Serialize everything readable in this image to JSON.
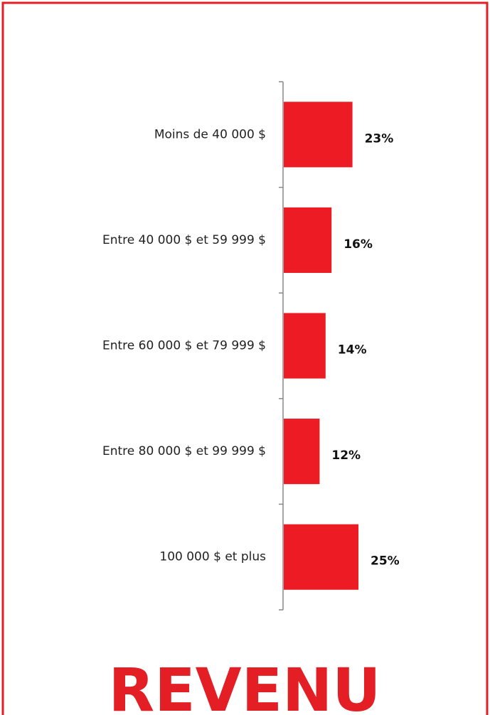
{
  "chart_data": {
    "type": "barh",
    "title": "REVENU",
    "categories": [
      "Moins de 40 000 $",
      "Entre 40 000 $ et 59 999 $",
      "Entre 60 000 $ et 79 999 $",
      "Entre 80 000 $ et 99 999 $",
      "100 000 $ et plus"
    ],
    "values": [
      23,
      16,
      14,
      12,
      25
    ],
    "value_labels": [
      "23%",
      "16%",
      "14%",
      "12%",
      "25%"
    ],
    "color": "#ed1c24",
    "xlim": [
      0,
      100
    ]
  }
}
